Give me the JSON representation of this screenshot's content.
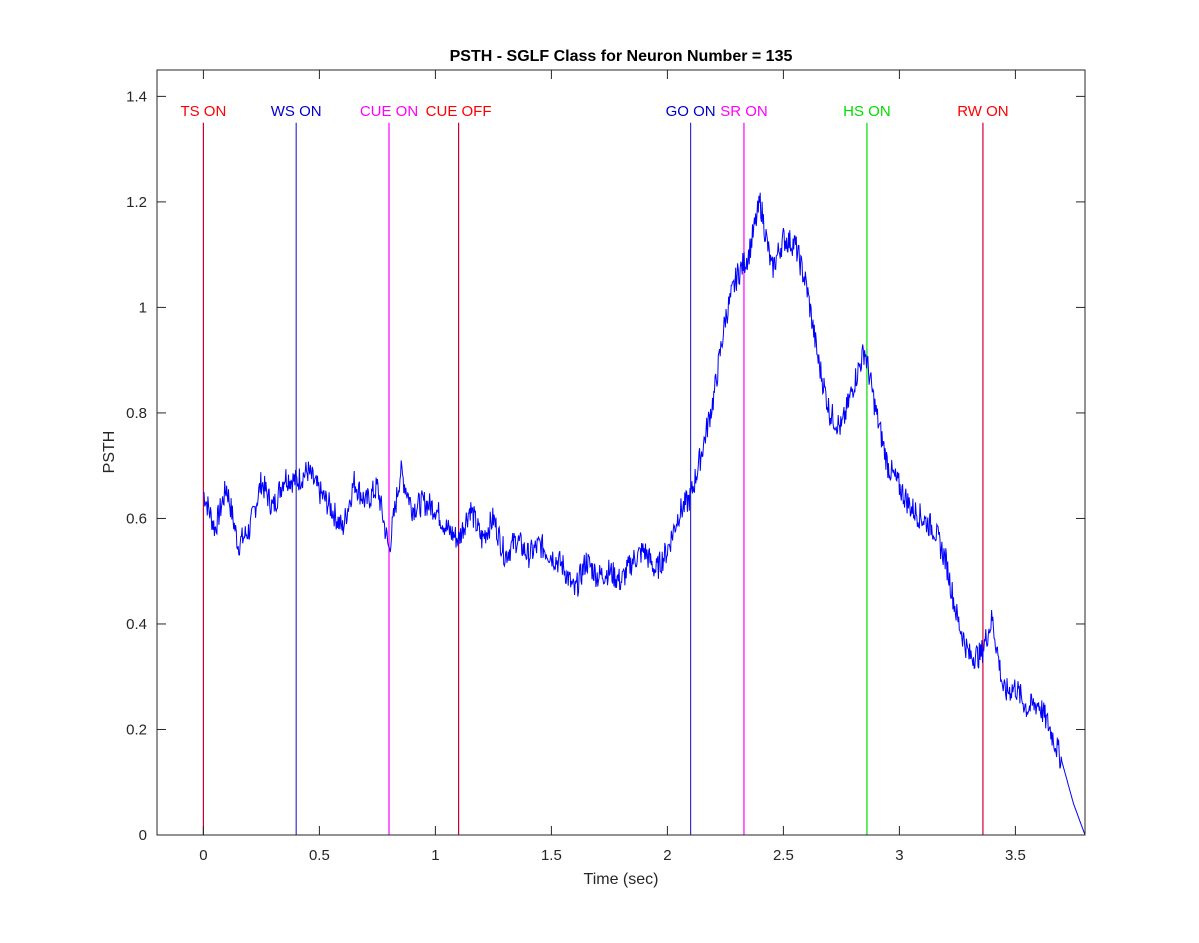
{
  "chart_data": {
    "type": "line",
    "title": "PSTH - SGLF Class for Neuron Number = 135",
    "xlabel": "Time (sec)",
    "ylabel": "PSTH",
    "xlim": [
      -0.2,
      3.8
    ],
    "ylim": [
      0,
      1.45
    ],
    "xticks": [
      0,
      0.5,
      1,
      1.5,
      2,
      2.5,
      3,
      3.5
    ],
    "xtick_labels": [
      "0",
      "0.5",
      "1",
      "1.5",
      "2",
      "2.5",
      "3",
      "3.5"
    ],
    "yticks": [
      0,
      0.2,
      0.4,
      0.6,
      0.8,
      1,
      1.2,
      1.4
    ],
    "ytick_labels": [
      "0",
      "0.2",
      "0.4",
      "0.6",
      "0.8",
      "1",
      "1.2",
      "1.4"
    ],
    "grid": false,
    "legend": "none",
    "series": [
      {
        "color": "#0000ff",
        "x": [
          0,
          0.05,
          0.1,
          0.15,
          0.2,
          0.25,
          0.3,
          0.35,
          0.4,
          0.45,
          0.5,
          0.55,
          0.6,
          0.65,
          0.7,
          0.75,
          0.8,
          0.85,
          0.9,
          0.95,
          1.0,
          1.05,
          1.1,
          1.15,
          1.2,
          1.25,
          1.3,
          1.35,
          1.4,
          1.45,
          1.5,
          1.55,
          1.6,
          1.65,
          1.7,
          1.75,
          1.8,
          1.85,
          1.9,
          1.95,
          2.0,
          2.05,
          2.1,
          2.15,
          2.2,
          2.25,
          2.3,
          2.35,
          2.4,
          2.45,
          2.5,
          2.55,
          2.6,
          2.65,
          2.7,
          2.75,
          2.8,
          2.85,
          2.9,
          2.95,
          3.0,
          3.05,
          3.1,
          3.15,
          3.2,
          3.25,
          3.3,
          3.35,
          3.4,
          3.45,
          3.5,
          3.55,
          3.6,
          3.65,
          3.7,
          3.75,
          3.8
        ],
        "y": [
          0.65,
          0.58,
          0.66,
          0.55,
          0.58,
          0.67,
          0.62,
          0.68,
          0.67,
          0.69,
          0.65,
          0.62,
          0.58,
          0.67,
          0.63,
          0.66,
          0.54,
          0.69,
          0.62,
          0.63,
          0.62,
          0.58,
          0.56,
          0.62,
          0.56,
          0.6,
          0.53,
          0.56,
          0.53,
          0.55,
          0.53,
          0.51,
          0.46,
          0.52,
          0.49,
          0.5,
          0.48,
          0.52,
          0.54,
          0.5,
          0.54,
          0.61,
          0.64,
          0.73,
          0.83,
          0.98,
          1.06,
          1.1,
          1.2,
          1.07,
          1.13,
          1.12,
          1.04,
          0.9,
          0.8,
          0.77,
          0.85,
          0.92,
          0.8,
          0.7,
          0.66,
          0.62,
          0.6,
          0.58,
          0.52,
          0.41,
          0.34,
          0.34,
          0.41,
          0.27,
          0.28,
          0.24,
          0.25,
          0.2,
          0.14,
          0.06,
          0.0
        ]
      }
    ],
    "events": [
      {
        "label": "TS ON",
        "x": 0.0,
        "color": "#ff0000",
        "line_color": "#cc0033"
      },
      {
        "label": "WS ON",
        "x": 0.4,
        "color": "#0000cc",
        "line_color": "#3333cc"
      },
      {
        "label": "CUE ON",
        "x": 0.8,
        "color": "#ff00ff",
        "line_color": "#ff00ff"
      },
      {
        "label": "CUE OFF",
        "x": 1.1,
        "color": "#ff0000",
        "line_color": "#cc0033"
      },
      {
        "label": "GO ON",
        "x": 2.1,
        "color": "#0000cc",
        "line_color": "#3333cc"
      },
      {
        "label": "SR ON",
        "x": 2.33,
        "color": "#ff00ff",
        "line_color": "#ff00ff"
      },
      {
        "label": "HS ON",
        "x": 2.86,
        "color": "#00dd00",
        "line_color": "#00dd00"
      },
      {
        "label": "RW ON",
        "x": 3.36,
        "color": "#ff0000",
        "line_color": "#cc0033"
      }
    ]
  }
}
